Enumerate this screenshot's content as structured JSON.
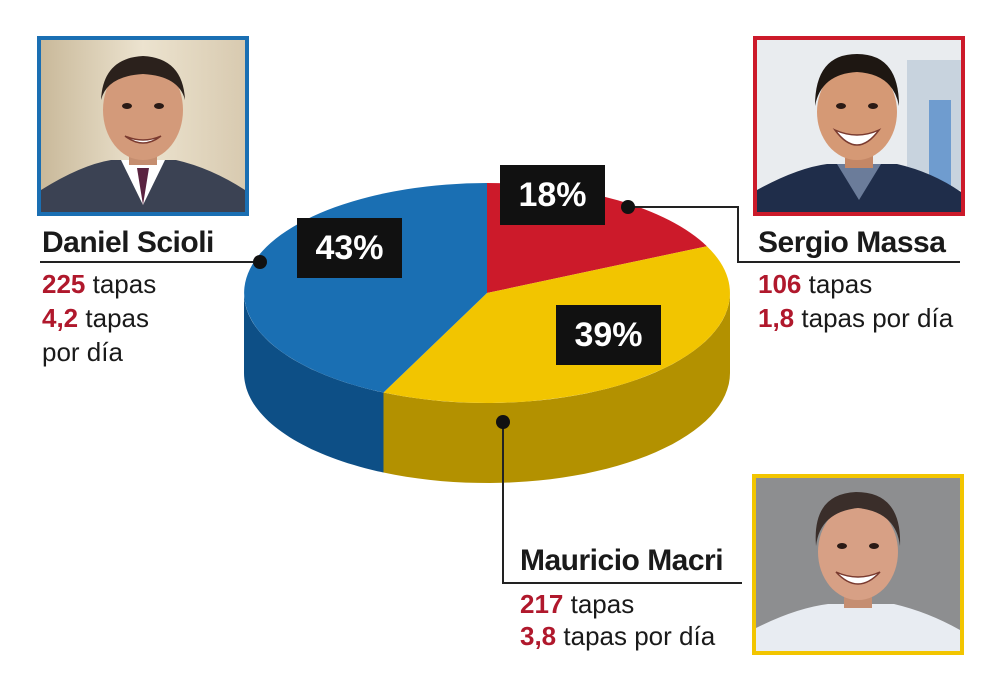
{
  "candidates": {
    "scioli": {
      "name": "Daniel Scioli",
      "tapas": "225",
      "tapas_label": "tapas",
      "per_day": "4,2",
      "per_day_label_1": "tapas",
      "per_day_label_2": "por día",
      "color": "#1a6fb3",
      "portrait": "daniel-scioli-portrait"
    },
    "massa": {
      "name": "Sergio Massa",
      "tapas": "106",
      "tapas_label": "tapas",
      "per_day": "1,8",
      "per_day_label": "tapas por día",
      "color": "#cc1a2a",
      "portrait": "sergio-massa-portrait"
    },
    "macri": {
      "name": "Mauricio Macri",
      "tapas": "217",
      "tapas_label": "tapas",
      "per_day": "3,8",
      "per_day_label": "tapas por día",
      "color": "#f2c500",
      "portrait": "mauricio-macri-portrait"
    }
  },
  "chart_data": {
    "type": "pie",
    "title": "",
    "style": "3d",
    "slices": [
      {
        "label": "Daniel Scioli",
        "value": 43,
        "display": "43%",
        "color": "#1a6fb3",
        "side_color": "#0d4f86"
      },
      {
        "label": "Sergio Massa",
        "value": 18,
        "display": "18%",
        "color": "#cc1a2a",
        "side_color": "#8f1020"
      },
      {
        "label": "Mauricio Macri",
        "value": 39,
        "display": "39%",
        "color": "#f2c500",
        "side_color": "#b39100"
      }
    ]
  }
}
